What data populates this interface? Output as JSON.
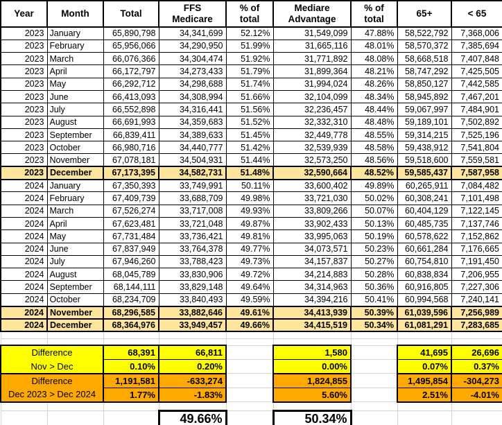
{
  "colors": {
    "highlight": "#FFE49B",
    "yellow": "#FFFF00",
    "orange": "#FFA800",
    "grid": "#D4D4D4"
  },
  "table": {
    "headers": [
      "Year",
      "Month",
      "Total",
      "FFS\nMedicare",
      "% of\ntotal",
      "Mediare\nAdvantage",
      "% of\ntotal",
      "65+",
      "< 65"
    ],
    "rows": [
      {
        "year": "2023",
        "month": "January",
        "total": "65,890,798",
        "ffs": "34,341,699",
        "ffs_pct": "52.12%",
        "ma": "31,549,099",
        "ma_pct": "47.88%",
        "over65": "58,522,792",
        "under65": "7,368,006",
        "highlight": false
      },
      {
        "year": "2023",
        "month": "February",
        "total": "65,956,066",
        "ffs": "34,290,950",
        "ffs_pct": "51.99%",
        "ma": "31,665,116",
        "ma_pct": "48.01%",
        "over65": "58,570,372",
        "under65": "7,385,694",
        "highlight": false
      },
      {
        "year": "2023",
        "month": "March",
        "total": "66,076,366",
        "ffs": "34,304,474",
        "ffs_pct": "51.92%",
        "ma": "31,771,892",
        "ma_pct": "48.08%",
        "over65": "58,668,518",
        "under65": "7,407,848",
        "highlight": false
      },
      {
        "year": "2023",
        "month": "April",
        "total": "66,172,797",
        "ffs": "34,273,433",
        "ffs_pct": "51.79%",
        "ma": "31,899,364",
        "ma_pct": "48.21%",
        "over65": "58,747,292",
        "under65": "7,425,505",
        "highlight": false
      },
      {
        "year": "2023",
        "month": "May",
        "total": "66,292,712",
        "ffs": "34,298,688",
        "ffs_pct": "51.74%",
        "ma": "31,994,024",
        "ma_pct": "48.26%",
        "over65": "58,850,127",
        "under65": "7,442,585",
        "highlight": false
      },
      {
        "year": "2023",
        "month": "June",
        "total": "66,413,093",
        "ffs": "34,308,994",
        "ffs_pct": "51.66%",
        "ma": "32,104,099",
        "ma_pct": "48.34%",
        "over65": "58,945,892",
        "under65": "7,467,201",
        "highlight": false
      },
      {
        "year": "2023",
        "month": "July",
        "total": "66,552,898",
        "ffs": "34,316,441",
        "ffs_pct": "51.56%",
        "ma": "32,236,457",
        "ma_pct": "48.44%",
        "over65": "59,067,997",
        "under65": "7,484,901",
        "highlight": false
      },
      {
        "year": "2023",
        "month": "August",
        "total": "66,691,993",
        "ffs": "34,359,683",
        "ffs_pct": "51.52%",
        "ma": "32,332,310",
        "ma_pct": "48.48%",
        "over65": "59,189,101",
        "under65": "7,502,892",
        "highlight": false
      },
      {
        "year": "2023",
        "month": "September",
        "total": "66,839,411",
        "ffs": "34,389,633",
        "ffs_pct": "51.45%",
        "ma": "32,449,778",
        "ma_pct": "48.55%",
        "over65": "59,314,215",
        "under65": "7,525,196",
        "highlight": false
      },
      {
        "year": "2023",
        "month": "October",
        "total": "66,980,716",
        "ffs": "34,440,777",
        "ffs_pct": "51.42%",
        "ma": "32,539,939",
        "ma_pct": "48.58%",
        "over65": "59,438,912",
        "under65": "7,541,804",
        "highlight": false
      },
      {
        "year": "2023",
        "month": "November",
        "total": "67,078,181",
        "ffs": "34,504,931",
        "ffs_pct": "51.44%",
        "ma": "32,573,250",
        "ma_pct": "48.56%",
        "over65": "59,518,600",
        "under65": "7,559,581",
        "highlight": false
      },
      {
        "year": "2023",
        "month": "December",
        "total": "67,173,395",
        "ffs": "34,582,731",
        "ffs_pct": "51.48%",
        "ma": "32,590,664",
        "ma_pct": "48.52%",
        "over65": "59,585,437",
        "under65": "7,587,958",
        "highlight": true
      },
      {
        "year": "2024",
        "month": "January",
        "total": "67,350,393",
        "ffs": "33,749,991",
        "ffs_pct": "50.11%",
        "ma": "33,600,402",
        "ma_pct": "49.89%",
        "over65": "60,265,911",
        "under65": "7,084,482",
        "highlight": false
      },
      {
        "year": "2024",
        "month": "February",
        "total": "67,409,739",
        "ffs": "33,688,709",
        "ffs_pct": "49.98%",
        "ma": "33,721,030",
        "ma_pct": "50.02%",
        "over65": "60,308,241",
        "under65": "7,101,498",
        "highlight": false
      },
      {
        "year": "2024",
        "month": "March",
        "total": "67,526,274",
        "ffs": "33,717,008",
        "ffs_pct": "49.93%",
        "ma": "33,809,266",
        "ma_pct": "50.07%",
        "over65": "60,404,129",
        "under65": "7,122,145",
        "highlight": false
      },
      {
        "year": "2024",
        "month": "April",
        "total": "67,623,481",
        "ffs": "33,721,048",
        "ffs_pct": "49.87%",
        "ma": "33,902,433",
        "ma_pct": "50.13%",
        "over65": "60,485,735",
        "under65": "7,137,746",
        "highlight": false
      },
      {
        "year": "2024",
        "month": "May",
        "total": "67,731,484",
        "ffs": "33,736,421",
        "ffs_pct": "49.81%",
        "ma": "33,995,063",
        "ma_pct": "50.19%",
        "over65": "60,578,622",
        "under65": "7,152,862",
        "highlight": false
      },
      {
        "year": "2024",
        "month": "June",
        "total": "67,837,949",
        "ffs": "33,764,378",
        "ffs_pct": "49.77%",
        "ma": "34,073,571",
        "ma_pct": "50.23%",
        "over65": "60,661,284",
        "under65": "7,176,665",
        "highlight": false
      },
      {
        "year": "2024",
        "month": "July",
        "total": "67,946,260",
        "ffs": "33,788,423",
        "ffs_pct": "49.73%",
        "ma": "34,157,837",
        "ma_pct": "50.27%",
        "over65": "60,754,810",
        "under65": "7,191,450",
        "highlight": false
      },
      {
        "year": "2024",
        "month": "August",
        "total": "68,045,789",
        "ffs": "33,830,906",
        "ffs_pct": "49.72%",
        "ma": "34,214,883",
        "ma_pct": "50.28%",
        "over65": "60,838,834",
        "under65": "7,206,955",
        "highlight": false
      },
      {
        "year": "2024",
        "month": "September",
        "total": "68,144,111",
        "ffs": "33,829,148",
        "ffs_pct": "49.64%",
        "ma": "34,314,963",
        "ma_pct": "50.36%",
        "over65": "60,916,805",
        "under65": "7,227,306",
        "highlight": false
      },
      {
        "year": "2024",
        "month": "October",
        "total": "68,234,709",
        "ffs": "33,840,493",
        "ffs_pct": "49.59%",
        "ma": "34,394,216",
        "ma_pct": "50.41%",
        "over65": "60,994,568",
        "under65": "7,240,141",
        "highlight": false
      },
      {
        "year": "2024",
        "month": "November",
        "total": "68,296,585",
        "ffs": "33,882,646",
        "ffs_pct": "49.61%",
        "ma": "34,413,939",
        "ma_pct": "50.39%",
        "over65": "61,039,596",
        "under65": "7,256,989",
        "highlight": true
      },
      {
        "year": "2024",
        "month": "December",
        "total": "68,364,976",
        "ffs": "33,949,457",
        "ffs_pct": "49.66%",
        "ma": "34,415,519",
        "ma_pct": "50.34%",
        "over65": "61,081,291",
        "under65": "7,283,685",
        "highlight": true
      }
    ]
  },
  "summary": {
    "nov_dec": {
      "label1": "Difference",
      "label2": "Nov > Dec",
      "abs": {
        "total": "68,391",
        "ffs": "66,811",
        "ma": "1,580",
        "over65": "41,695",
        "under65": "26,696"
      },
      "pct": {
        "total": "0.10%",
        "ffs": "0.20%",
        "ma": "0.00%",
        "over65": "0.07%",
        "under65": "0.37%"
      }
    },
    "dec_dec": {
      "label1": "Difference",
      "label2": "Dec 2023 > Dec 2024",
      "abs": {
        "total": "1,191,581",
        "ffs": "-633,274",
        "ma": "1,824,855",
        "over65": "1,495,854",
        "under65": "-304,273"
      },
      "pct": {
        "total": "1.77%",
        "ffs": "-1.83%",
        "ma": "5.60%",
        "over65": "2.51%",
        "under65": "-4.01%"
      }
    },
    "ffs_share": "49.66%",
    "ma_share": "50.34%"
  }
}
